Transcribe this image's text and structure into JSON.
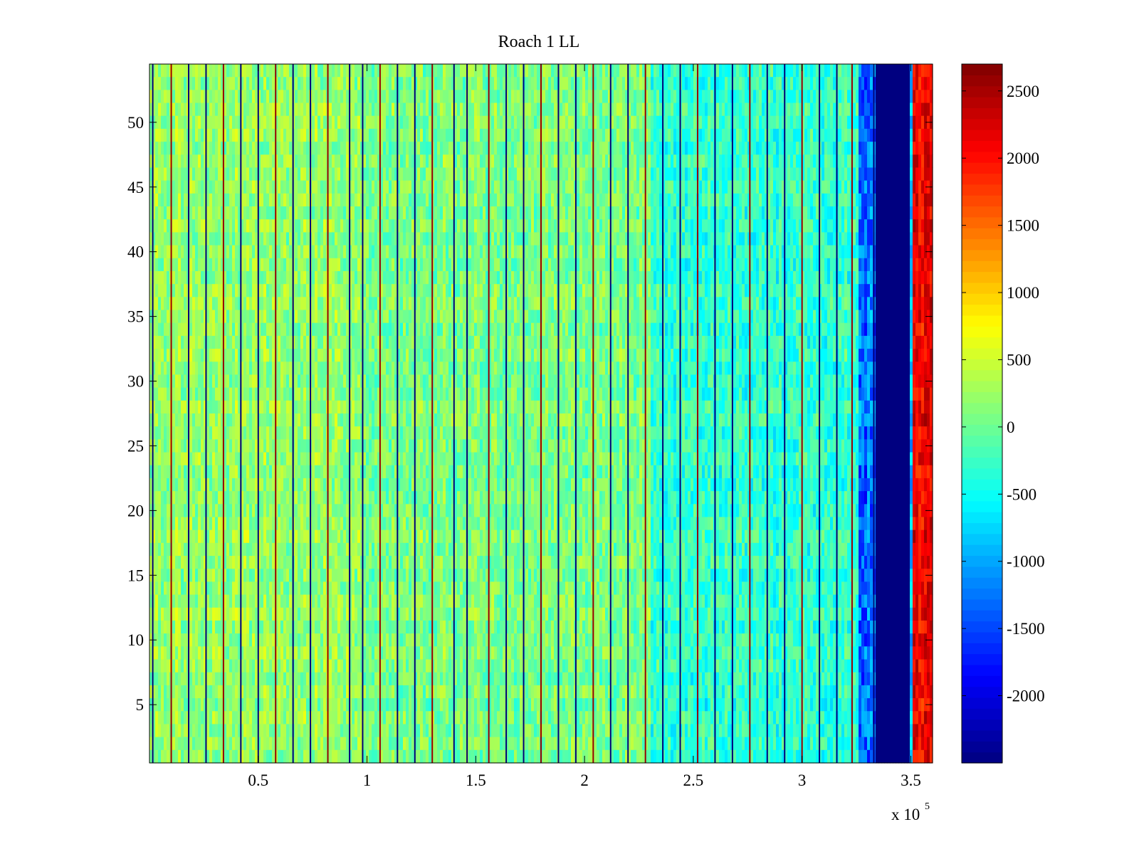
{
  "chart_data": {
    "type": "heatmap",
    "title": "Roach 1 LL",
    "xlabel": "",
    "ylabel": "",
    "xlim": [
      0,
      360000
    ],
    "ylim": [
      0.5,
      54.5
    ],
    "rows": 54,
    "x_ticks": [
      50000,
      100000,
      150000,
      200000,
      250000,
      300000,
      350000
    ],
    "x_tick_labels": [
      "0.5",
      "1",
      "1.5",
      "2",
      "2.5",
      "3",
      "3.5"
    ],
    "x_exponent_base": "x 10",
    "x_exponent_power": "5",
    "y_ticks": [
      5,
      10,
      15,
      20,
      25,
      30,
      35,
      40,
      45,
      50
    ],
    "y_tick_labels": [
      "5",
      "10",
      "15",
      "20",
      "25",
      "30",
      "35",
      "40",
      "45",
      "50"
    ],
    "colormap": "jet",
    "colorbar": {
      "min": -2500,
      "max": 2700,
      "ticks": [
        -2000,
        -1500,
        -1000,
        -500,
        0,
        500,
        1000,
        1500,
        2000,
        2500
      ],
      "tick_labels": [
        "-2000",
        "-1500",
        "-1000",
        "-500",
        "0",
        "500",
        "1000",
        "1500",
        "2000",
        "2500"
      ]
    },
    "regions": [
      {
        "x_start": 0,
        "x_end": 100000,
        "mean": 200,
        "noise": 350
      },
      {
        "x_start": 100000,
        "x_end": 230000,
        "mean": 80,
        "noise": 350
      },
      {
        "x_start": 230000,
        "x_end": 326000,
        "mean": -300,
        "noise": 380
      },
      {
        "x_start": 326000,
        "x_end": 334000,
        "mean": -1300,
        "noise": 500
      },
      {
        "x_start": 334000,
        "x_end": 349000,
        "mean": -2500,
        "noise": 0
      },
      {
        "x_start": 349000,
        "x_end": 351000,
        "mean": -800,
        "noise": 400
      },
      {
        "x_start": 351000,
        "x_end": 360000,
        "mean": 2100,
        "noise": 350
      }
    ],
    "spike_lines_x": [
      1500,
      10000,
      18000,
      26000,
      34000,
      42000,
      50000,
      58000,
      66000,
      74000,
      82000,
      92000,
      98000,
      106000,
      114000,
      122000,
      130000,
      140000,
      146000,
      156000,
      164000,
      172000,
      180000,
      188000,
      196000,
      204000,
      212000,
      220000,
      228000,
      236000,
      244000,
      252000,
      260000,
      268000,
      276000,
      284000,
      292000,
      300000,
      308000,
      316000,
      323000,
      333000
    ]
  }
}
